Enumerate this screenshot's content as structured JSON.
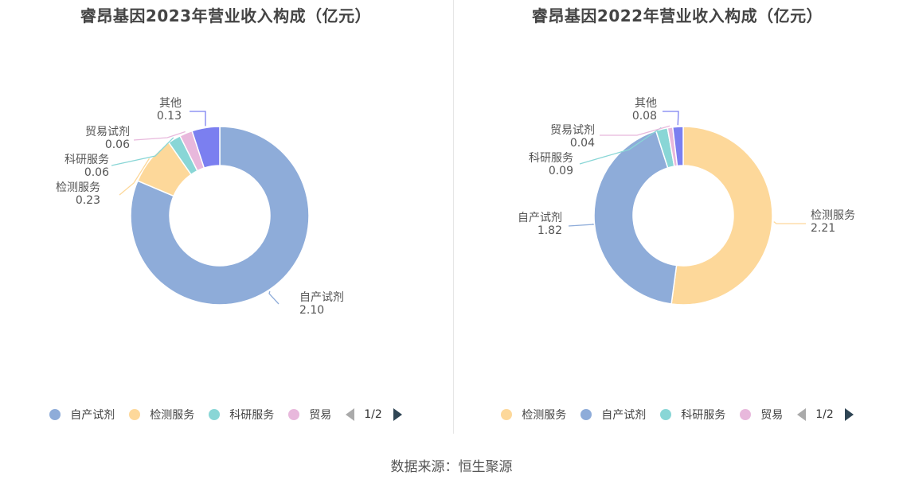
{
  "source": "数据来源：恒生聚源",
  "chart_data": [
    {
      "type": "pie",
      "title": "睿昂基因2023年营业收入构成（亿元）",
      "slices": [
        {
          "name": "自产试剂",
          "value": 2.1,
          "label": "2.10",
          "color": "#8eacd9"
        },
        {
          "name": "检测服务",
          "value": 0.23,
          "label": "0.23",
          "color": "#fdd89a"
        },
        {
          "name": "科研服务",
          "value": 0.06,
          "label": "0.06",
          "color": "#89d6d6"
        },
        {
          "name": "贸易试剂",
          "value": 0.06,
          "label": "0.06",
          "color": "#e8b8dc"
        },
        {
          "name": "其他",
          "value": 0.13,
          "label": "0.13",
          "color": "#7b7ff0"
        }
      ],
      "legend": {
        "items": [
          "自产试剂",
          "检测服务",
          "科研服务",
          "贸易"
        ],
        "page": "1/2"
      }
    },
    {
      "type": "pie",
      "title": "睿昂基因2022年营业收入构成（亿元）",
      "slices": [
        {
          "name": "检测服务",
          "value": 2.21,
          "label": "2.21",
          "color": "#fdd89a"
        },
        {
          "name": "自产试剂",
          "value": 1.82,
          "label": "1.82",
          "color": "#8eacd9"
        },
        {
          "name": "科研服务",
          "value": 0.09,
          "label": "0.09",
          "color": "#89d6d6"
        },
        {
          "name": "贸易试剂",
          "value": 0.04,
          "label": "0.04",
          "color": "#e8b8dc"
        },
        {
          "name": "其他",
          "value": 0.08,
          "label": "0.08",
          "color": "#7b7ff0"
        }
      ],
      "legend": {
        "items": [
          "检测服务",
          "自产试剂",
          "科研服务",
          "贸易"
        ],
        "page": "1/2"
      }
    }
  ]
}
